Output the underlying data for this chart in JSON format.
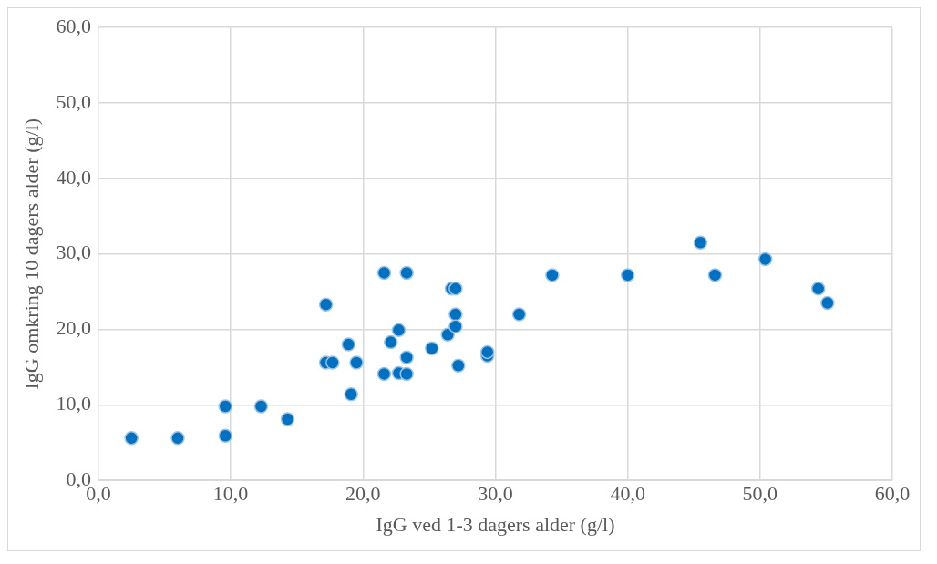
{
  "chart_data": {
    "type": "scatter",
    "xlabel": "IgG ved 1-3 dagers alder (g/l)",
    "ylabel": "IgG omkring 10 dagers alder (g/l)",
    "x": [
      2.5,
      6.0,
      9.6,
      9.6,
      12.3,
      14.3,
      17.2,
      17.2,
      17.7,
      18.9,
      19.1,
      19.5,
      21.6,
      21.6,
      22.1,
      22.7,
      22.7,
      23.3,
      23.3,
      23.3,
      25.2,
      26.4,
      26.7,
      27.0,
      27.0,
      27.0,
      27.2,
      29.4,
      29.4,
      31.8,
      34.3,
      40.0,
      45.5,
      46.6,
      50.4,
      54.4,
      55.1
    ],
    "values": [
      5.6,
      5.6,
      9.8,
      5.9,
      9.8,
      8.1,
      23.3,
      15.6,
      15.6,
      18.0,
      11.4,
      15.6,
      27.5,
      14.1,
      18.3,
      19.9,
      14.2,
      27.5,
      16.3,
      14.1,
      17.5,
      19.3,
      25.4,
      25.4,
      22.0,
      20.4,
      15.2,
      16.5,
      17.0,
      22.0,
      27.2,
      27.2,
      31.5,
      27.2,
      29.3,
      25.4,
      23.5
    ],
    "color": "#0070c0",
    "marker": "circle",
    "grid": true,
    "legend": false,
    "xlim": [
      0,
      60
    ],
    "xticks": [
      {
        "value": 0,
        "label": "0,0"
      },
      {
        "value": 10,
        "label": "10,0"
      },
      {
        "value": 20,
        "label": "20,0"
      },
      {
        "value": 30,
        "label": "30,0"
      },
      {
        "value": 40,
        "label": "40,0"
      },
      {
        "value": 50,
        "label": "50,0"
      },
      {
        "value": 60,
        "label": "60,0"
      }
    ],
    "ylim": [
      0,
      60
    ],
    "yticks": [
      {
        "value": 0,
        "label": "0,0"
      },
      {
        "value": 10,
        "label": "10,0"
      },
      {
        "value": 20,
        "label": "20,0"
      },
      {
        "value": 30,
        "label": "30,0"
      },
      {
        "value": 40,
        "label": "40,0"
      },
      {
        "value": 50,
        "label": "50,0"
      },
      {
        "value": 60,
        "label": "60,0"
      }
    ]
  }
}
